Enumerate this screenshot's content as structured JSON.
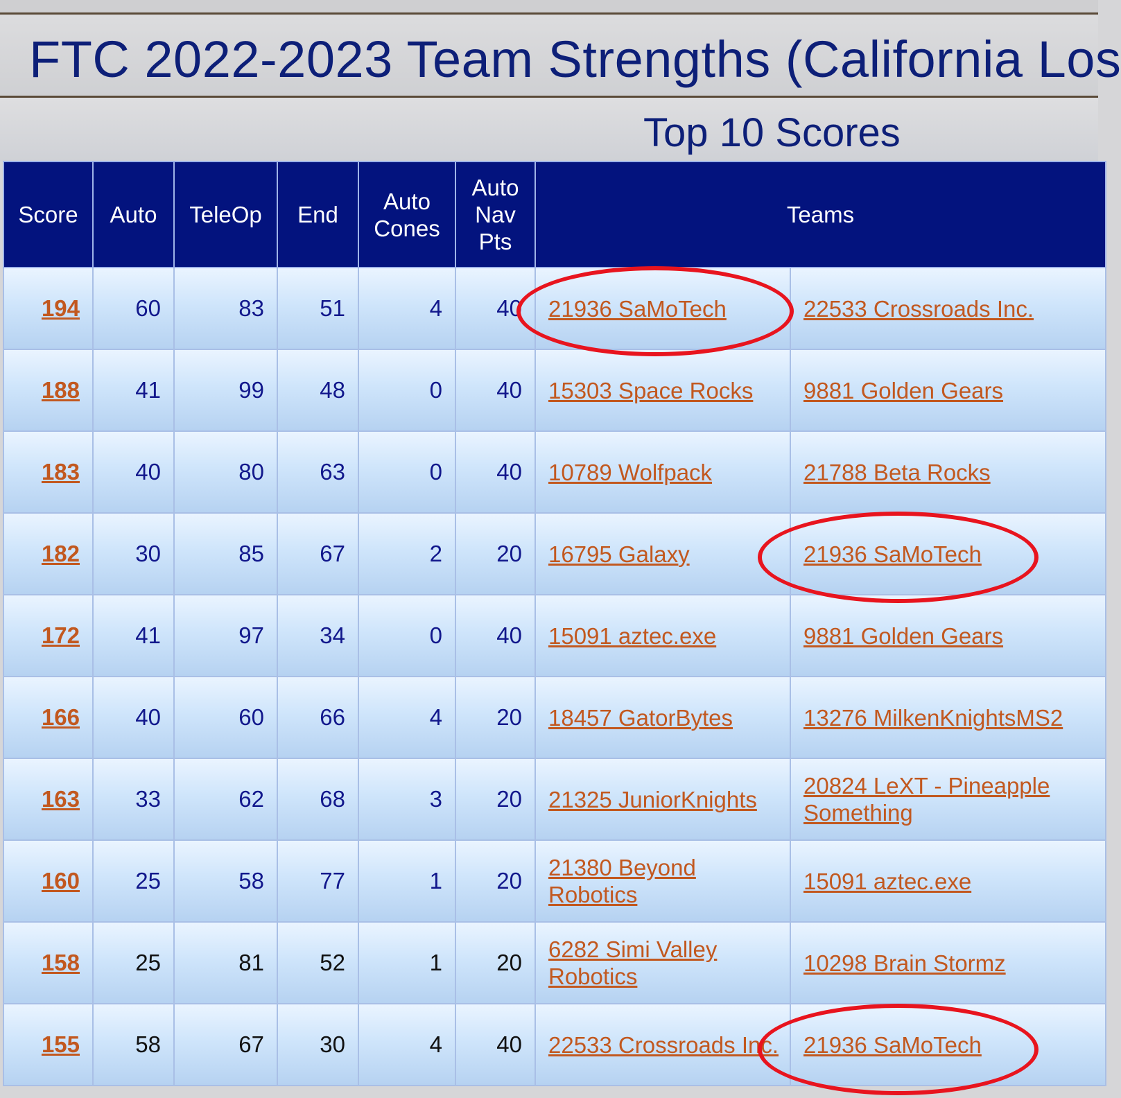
{
  "page": {
    "title": "FTC 2022-2023 Team Strengths (California Los",
    "section_title": "Top 10 Scores"
  },
  "table": {
    "headers": [
      "Score",
      "Auto",
      "TeleOp",
      "End",
      "Auto\nCones",
      "Auto\nNav\nPts",
      "Teams"
    ],
    "rows": [
      {
        "score": "194",
        "auto": "60",
        "teleop": "83",
        "end": "51",
        "cones": "4",
        "nav": "40",
        "team1": "21936 SaMoTech",
        "team2": "22533 Crossroads Inc."
      },
      {
        "score": "188",
        "auto": "41",
        "teleop": "99",
        "end": "48",
        "cones": "0",
        "nav": "40",
        "team1": "15303 Space Rocks",
        "team2": "9881 Golden Gears"
      },
      {
        "score": "183",
        "auto": "40",
        "teleop": "80",
        "end": "63",
        "cones": "0",
        "nav": "40",
        "team1": "10789 Wolfpack",
        "team2": "21788 Beta Rocks"
      },
      {
        "score": "182",
        "auto": "30",
        "teleop": "85",
        "end": "67",
        "cones": "2",
        "nav": "20",
        "team1": "16795 Galaxy",
        "team2": "21936 SaMoTech"
      },
      {
        "score": "172",
        "auto": "41",
        "teleop": "97",
        "end": "34",
        "cones": "0",
        "nav": "40",
        "team1": "15091 aztec.exe",
        "team2": "9881 Golden Gears"
      },
      {
        "score": "166",
        "auto": "40",
        "teleop": "60",
        "end": "66",
        "cones": "4",
        "nav": "20",
        "team1": "18457 GatorBytes",
        "team2": "13276 MilkenKnightsMS2"
      },
      {
        "score": "163",
        "auto": "33",
        "teleop": "62",
        "end": "68",
        "cones": "3",
        "nav": "20",
        "team1": "21325 JuniorKnights",
        "team2": "20824 LeXT - Pineapple Something"
      },
      {
        "score": "160",
        "auto": "25",
        "teleop": "58",
        "end": "77",
        "cones": "1",
        "nav": "20",
        "team1": "21380 Beyond Robotics",
        "team2": "15091 aztec.exe"
      },
      {
        "score": "158",
        "auto": "25",
        "teleop": "81",
        "end": "52",
        "cones": "1",
        "nav": "20",
        "team1": "6282 Simi Valley Robotics",
        "team2": "10298 Brain Stormz"
      },
      {
        "score": "155",
        "auto": "58",
        "teleop": "67",
        "end": "30",
        "cones": "4",
        "nav": "40",
        "team1": "22533 Crossroads Inc.",
        "team2": "21936 SaMoTech"
      }
    ]
  },
  "colors": {
    "header_bg": "#03137e",
    "title_text": "#0d1f78",
    "link": "#c2581f",
    "highlight_circle": "#e8141e"
  }
}
